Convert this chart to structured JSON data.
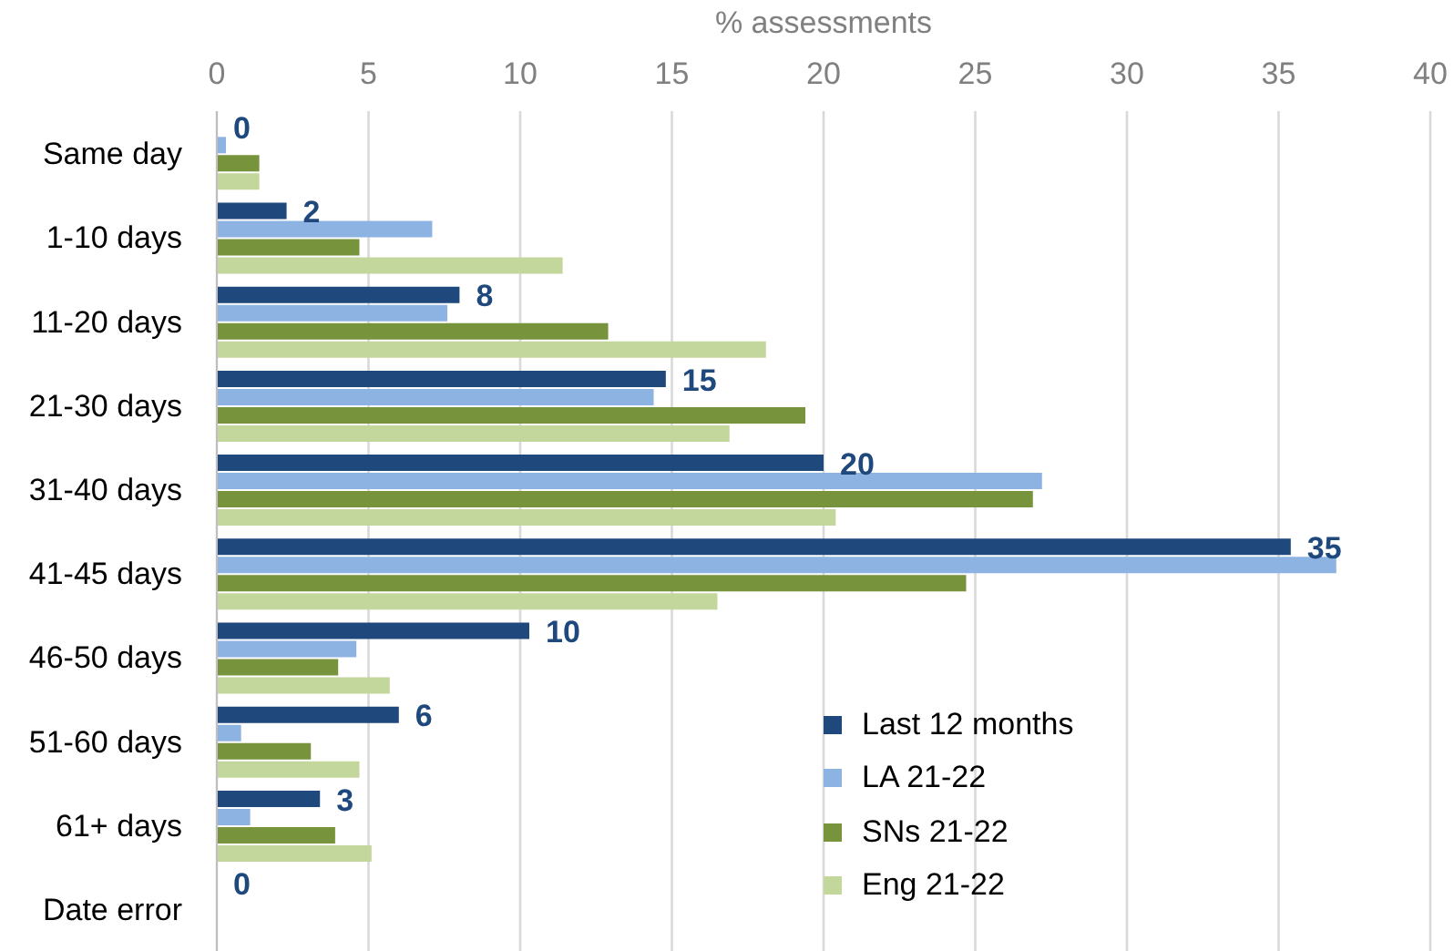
{
  "chart_data": {
    "type": "bar",
    "orientation": "horizontal",
    "xlabel": "% assessments",
    "categories": [
      "Same day",
      "1-10 days",
      "11-20 days",
      "21-30 days",
      "31-40 days",
      "41-45 days",
      "46-50 days",
      "51-60 days",
      "61+ days",
      "Date error"
    ],
    "series": [
      {
        "name": "Last 12 months",
        "color": "#1f497d",
        "values": [
          0,
          2.3,
          8.0,
          14.8,
          20.0,
          35.4,
          10.3,
          6.0,
          3.4,
          0
        ],
        "value_labels": [
          "0",
          "2",
          "8",
          "15",
          "20",
          "35",
          "10",
          "6",
          "3",
          "0"
        ]
      },
      {
        "name": "LA 21-22",
        "color": "#8db3e2",
        "values": [
          0.3,
          7.1,
          7.6,
          14.4,
          27.2,
          36.9,
          4.6,
          0.8,
          1.1,
          0
        ]
      },
      {
        "name": "SNs 21-22",
        "color": "#77933c",
        "values": [
          1.4,
          4.7,
          12.9,
          19.4,
          26.9,
          24.7,
          4.0,
          3.1,
          3.9,
          0
        ]
      },
      {
        "name": "Eng 21-22",
        "color": "#c3d69b",
        "values": [
          1.4,
          11.4,
          18.1,
          16.9,
          20.4,
          16.5,
          5.7,
          4.7,
          5.1,
          0
        ]
      }
    ],
    "xlim": [
      0,
      40
    ],
    "xticks": [
      0,
      5,
      10,
      15,
      20,
      25,
      30,
      35,
      40
    ],
    "grid": "x",
    "legend": "bottom right"
  }
}
